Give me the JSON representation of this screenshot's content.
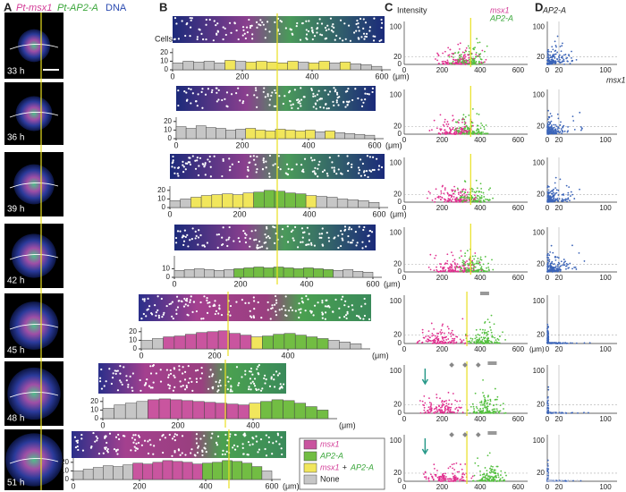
{
  "panels": {
    "A": {
      "letter": "A",
      "title_parts": [
        "Pt-msx1",
        "Pt-AP2-A",
        "DNA"
      ],
      "timepoints": [
        "33 h",
        "36 h",
        "39 h",
        "42 h",
        "45 h",
        "48 h",
        "51 h"
      ]
    },
    "B": {
      "letter": "B",
      "ylabel": "Cells",
      "xunit": "(μm)",
      "ylim": [
        0,
        25
      ],
      "bins": [
        0,
        30,
        60,
        90,
        120,
        150,
        180,
        210,
        240,
        270,
        300,
        330,
        360,
        390,
        420,
        450,
        480,
        510,
        540,
        570,
        600
      ],
      "rows": [
        {
          "xticks": [
            0,
            200,
            400,
            600
          ],
          "yticks": [
            0,
            10,
            20
          ],
          "values": [
            8,
            10,
            9,
            10,
            8,
            11,
            10,
            9,
            10,
            9,
            8,
            10,
            9,
            8,
            10,
            8,
            9,
            7,
            6,
            4
          ],
          "kinds": [
            3,
            3,
            3,
            3,
            3,
            2,
            3,
            2,
            2,
            2,
            2,
            2,
            3,
            2,
            2,
            3,
            2,
            3,
            3,
            3
          ]
        },
        {
          "xticks": [
            0,
            200,
            400,
            600
          ],
          "yticks": [
            0,
            10,
            20
          ],
          "values": [
            14,
            12,
            15,
            13,
            12,
            10,
            11,
            12,
            10,
            9,
            11,
            10,
            9,
            10,
            8,
            9,
            7,
            6,
            5,
            4
          ],
          "kinds": [
            3,
            3,
            3,
            3,
            3,
            3,
            3,
            2,
            2,
            2,
            2,
            2,
            2,
            2,
            3,
            2,
            3,
            3,
            3,
            3
          ]
        },
        {
          "xticks": [
            0,
            200,
            400,
            600
          ],
          "yticks": [
            0,
            10,
            20
          ],
          "values": [
            8,
            10,
            12,
            14,
            15,
            16,
            15,
            17,
            18,
            20,
            19,
            17,
            16,
            14,
            13,
            12,
            10,
            9,
            8,
            6
          ],
          "kinds": [
            3,
            3,
            2,
            2,
            2,
            2,
            2,
            2,
            1,
            1,
            1,
            1,
            1,
            2,
            3,
            3,
            3,
            3,
            3,
            3
          ]
        },
        {
          "xticks": [
            0,
            200,
            400,
            600
          ],
          "yticks": [
            0,
            10
          ],
          "values": [
            8,
            9,
            10,
            9,
            8,
            9,
            10,
            11,
            12,
            11,
            12,
            11,
            10,
            11,
            10,
            9,
            8,
            9,
            7,
            6
          ],
          "kinds": [
            3,
            3,
            3,
            3,
            3,
            3,
            1,
            1,
            1,
            1,
            1,
            1,
            1,
            1,
            1,
            1,
            3,
            3,
            3,
            3
          ]
        },
        {
          "xticks": [
            0,
            200,
            400
          ],
          "yticks": [
            0,
            10,
            20
          ],
          "values": [
            10,
            12,
            14,
            15,
            17,
            19,
            20,
            21,
            18,
            16,
            14,
            15,
            17,
            18,
            16,
            14,
            12,
            10,
            8,
            6
          ],
          "kinds": [
            3,
            3,
            0,
            0,
            0,
            0,
            0,
            0,
            0,
            0,
            2,
            1,
            1,
            1,
            1,
            1,
            1,
            3,
            3,
            3
          ]
        },
        {
          "xticks": [
            0,
            200,
            400
          ],
          "yticks": [
            0,
            10,
            20
          ],
          "values": [
            12,
            16,
            18,
            20,
            22,
            23,
            22,
            21,
            20,
            19,
            18,
            17,
            16,
            18,
            20,
            22,
            21,
            18,
            14,
            10
          ],
          "kinds": [
            3,
            3,
            3,
            3,
            0,
            0,
            0,
            0,
            0,
            0,
            0,
            0,
            0,
            2,
            1,
            1,
            1,
            1,
            1,
            1
          ]
        },
        {
          "xticks": [
            0,
            200,
            400,
            600
          ],
          "yticks": [
            0,
            10,
            20
          ],
          "values": [
            10,
            12,
            14,
            16,
            15,
            17,
            19,
            18,
            20,
            22,
            21,
            20,
            18,
            19,
            20,
            22,
            21,
            19,
            15,
            10
          ],
          "kinds": [
            3,
            3,
            3,
            3,
            3,
            3,
            0,
            0,
            0,
            0,
            0,
            0,
            0,
            1,
            1,
            1,
            1,
            1,
            1,
            3
          ]
        }
      ]
    },
    "C": {
      "letter": "C",
      "ylabel": "Intensity",
      "legend": [
        "msx1",
        "AP2-A"
      ],
      "xunit": "(μm)",
      "xlim": [
        0,
        650
      ],
      "ylim": [
        0,
        115
      ],
      "xticks": [
        0,
        200,
        400,
        600
      ],
      "yticks": [
        0,
        20,
        100
      ]
    },
    "D": {
      "letter": "D",
      "ylabel": "AP2-A",
      "xlabel": "msx1",
      "xlim": [
        0,
        120
      ],
      "ylim": [
        0,
        115
      ],
      "xticks": [
        0,
        20,
        100
      ],
      "yticks": [
        20,
        100
      ]
    }
  },
  "legend": {
    "items": [
      {
        "label": [
          "msx1"
        ],
        "color": "#c9559f"
      },
      {
        "label": [
          "AP2-A"
        ],
        "color": "#72bd43"
      },
      {
        "label": [
          "msx1",
          "+",
          "AP2-A"
        ],
        "color": "#f1e65c"
      },
      {
        "label": [
          "None"
        ],
        "color": "#c6c6c6"
      }
    ]
  }
}
